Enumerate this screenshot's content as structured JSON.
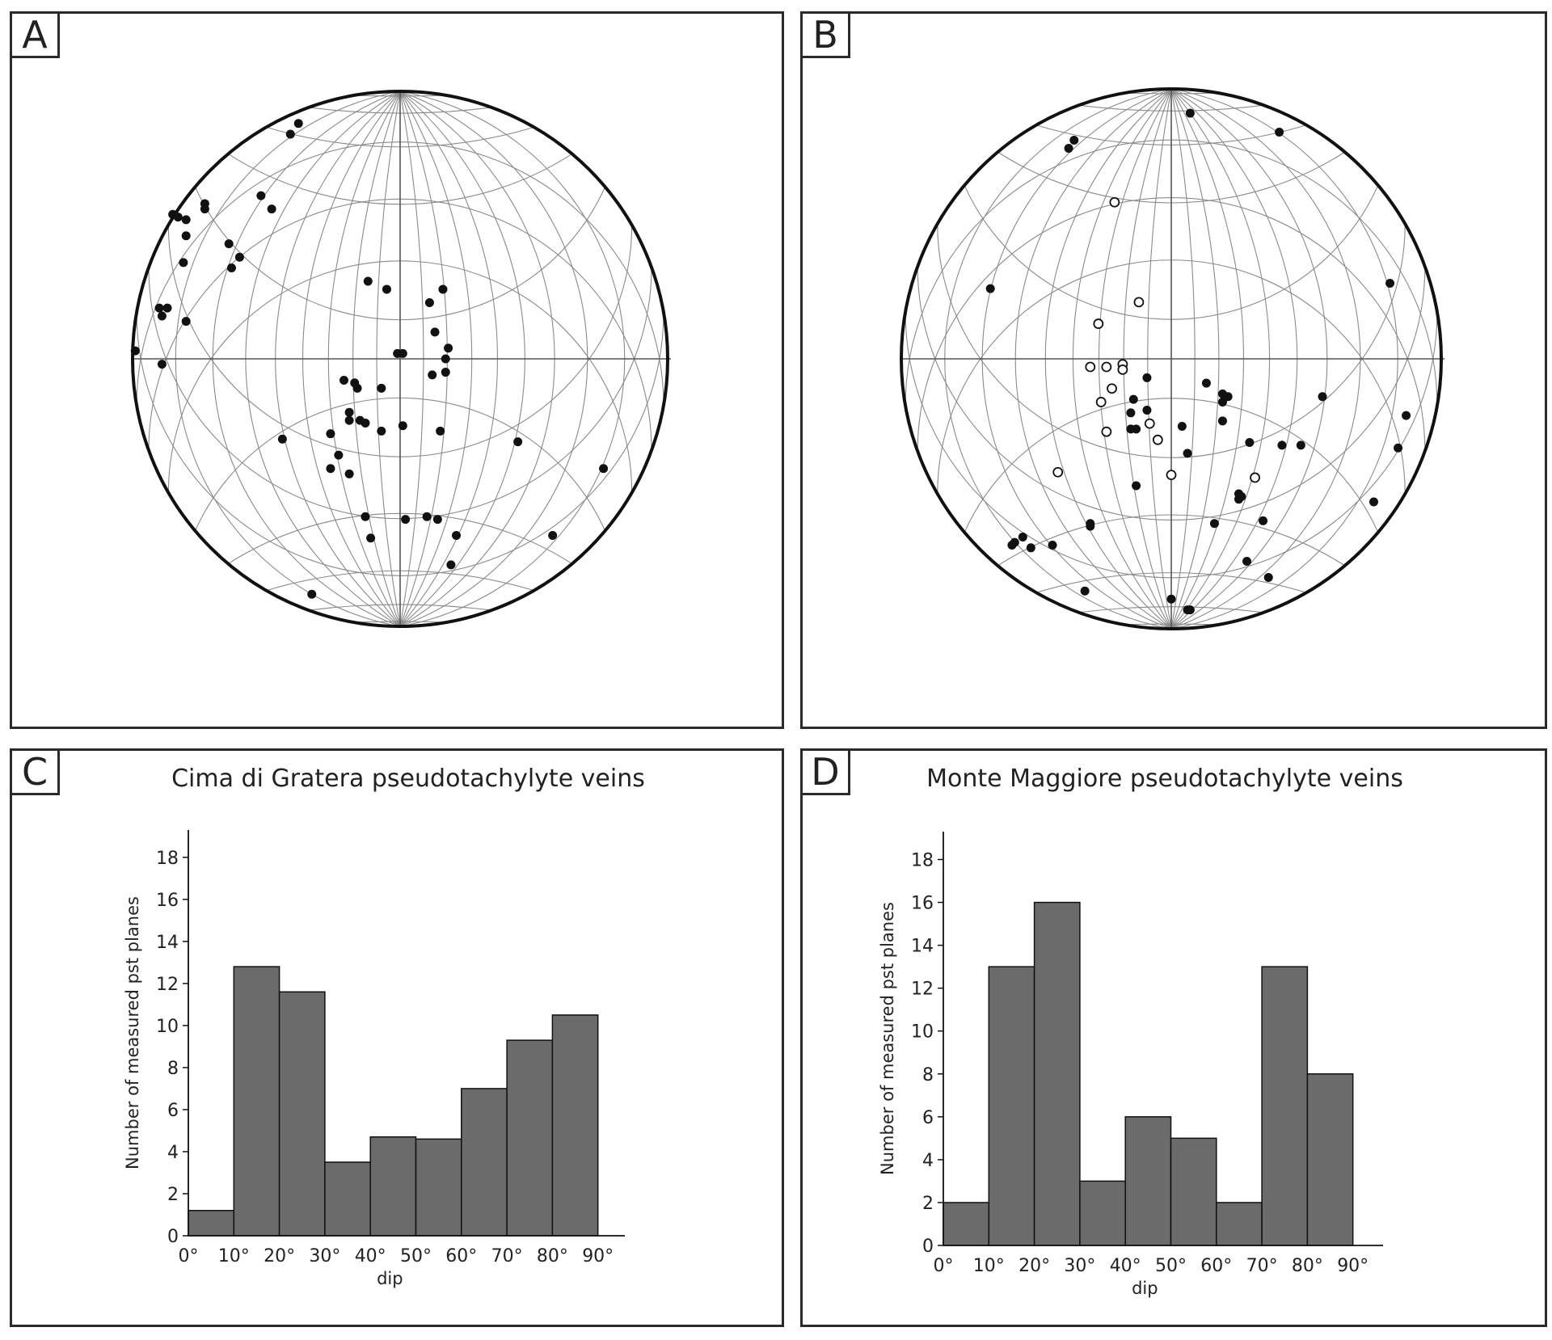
{
  "panels": {
    "a": {
      "label": "A"
    },
    "b": {
      "label": "B"
    },
    "c": {
      "label": "C"
    },
    "d": {
      "label": "D"
    }
  },
  "chart_data": [
    {
      "type": "scatter",
      "id": "stereonet-a",
      "projection": "equal-area lower hemisphere stereonet (poles to pseudotachylyte planes)",
      "grid": true,
      "series": [
        {
          "name": "poles",
          "marker": "filled",
          "points": [
            [
              -0.38,
              0.88
            ],
            [
              -0.41,
              0.84
            ],
            [
              -0.85,
              0.54
            ],
            [
              -0.83,
              0.53
            ],
            [
              -0.8,
              0.52
            ],
            [
              -0.73,
              0.58
            ],
            [
              -0.73,
              0.56
            ],
            [
              -0.52,
              0.61
            ],
            [
              -0.48,
              0.56
            ],
            [
              -0.8,
              0.46
            ],
            [
              -0.64,
              0.43
            ],
            [
              -0.6,
              0.38
            ],
            [
              -0.63,
              0.34
            ],
            [
              -0.81,
              0.36
            ],
            [
              -0.9,
              0.19
            ],
            [
              -0.87,
              0.19
            ],
            [
              -0.89,
              0.16
            ],
            [
              -0.8,
              0.14
            ],
            [
              -0.99,
              0.03
            ],
            [
              -0.89,
              -0.02
            ],
            [
              -0.12,
              0.29
            ],
            [
              -0.05,
              0.26
            ],
            [
              0.16,
              0.26
            ],
            [
              0.11,
              0.21
            ],
            [
              0.13,
              0.1
            ],
            [
              -0.01,
              0.02
            ],
            [
              0.01,
              0.02
            ],
            [
              0.18,
              0.04
            ],
            [
              0.17,
              0.0
            ],
            [
              0.12,
              -0.06
            ],
            [
              0.17,
              -0.05
            ],
            [
              -0.21,
              -0.08
            ],
            [
              -0.17,
              -0.09
            ],
            [
              -0.16,
              -0.11
            ],
            [
              -0.07,
              -0.11
            ],
            [
              -0.19,
              -0.2
            ],
            [
              -0.15,
              -0.23
            ],
            [
              -0.19,
              -0.23
            ],
            [
              -0.13,
              -0.24
            ],
            [
              -0.07,
              -0.27
            ],
            [
              0.01,
              -0.25
            ],
            [
              0.15,
              -0.27
            ],
            [
              -0.26,
              -0.28
            ],
            [
              -0.44,
              -0.3
            ],
            [
              -0.23,
              -0.36
            ],
            [
              -0.26,
              -0.41
            ],
            [
              -0.19,
              -0.43
            ],
            [
              0.44,
              -0.31
            ],
            [
              0.76,
              -0.41
            ],
            [
              -0.13,
              -0.59
            ],
            [
              -0.11,
              -0.67
            ],
            [
              0.02,
              -0.6
            ],
            [
              0.1,
              -0.59
            ],
            [
              0.14,
              -0.6
            ],
            [
              0.21,
              -0.66
            ],
            [
              0.19,
              -0.77
            ],
            [
              0.57,
              -0.66
            ],
            [
              -0.33,
              -0.88
            ]
          ]
        }
      ]
    },
    {
      "type": "scatter",
      "id": "stereonet-b",
      "projection": "equal-area lower hemisphere stereonet (poles to pseudotachylyte planes)",
      "grid": true,
      "series": [
        {
          "name": "poles",
          "marker": "filled",
          "points": [
            [
              0.07,
              0.91
            ],
            [
              -0.36,
              0.81
            ],
            [
              -0.38,
              0.78
            ],
            [
              0.4,
              0.84
            ],
            [
              -0.67,
              0.26
            ],
            [
              0.81,
              0.28
            ],
            [
              -0.09,
              -0.07
            ],
            [
              0.13,
              -0.09
            ],
            [
              0.19,
              -0.13
            ],
            [
              0.21,
              -0.14
            ],
            [
              0.19,
              -0.16
            ],
            [
              0.56,
              -0.14
            ],
            [
              -0.14,
              -0.15
            ],
            [
              -0.15,
              -0.2
            ],
            [
              -0.09,
              -0.19
            ],
            [
              -0.15,
              -0.26
            ],
            [
              -0.13,
              -0.26
            ],
            [
              0.19,
              -0.23
            ],
            [
              0.04,
              -0.25
            ],
            [
              0.06,
              -0.35
            ],
            [
              0.29,
              -0.31
            ],
            [
              0.41,
              -0.32
            ],
            [
              0.48,
              -0.32
            ],
            [
              0.87,
              -0.21
            ],
            [
              0.84,
              -0.33
            ],
            [
              -0.13,
              -0.47
            ],
            [
              0.25,
              -0.5
            ],
            [
              0.25,
              -0.52
            ],
            [
              0.26,
              -0.51
            ],
            [
              0.75,
              -0.53
            ],
            [
              -0.3,
              -0.61
            ],
            [
              -0.3,
              -0.62
            ],
            [
              0.16,
              -0.61
            ],
            [
              0.34,
              -0.6
            ],
            [
              -0.58,
              -0.68
            ],
            [
              -0.55,
              -0.66
            ],
            [
              -0.59,
              -0.69
            ],
            [
              -0.52,
              -0.7
            ],
            [
              -0.44,
              -0.69
            ],
            [
              0.28,
              -0.75
            ],
            [
              0.36,
              -0.81
            ],
            [
              -0.32,
              -0.86
            ],
            [
              0.0,
              -0.89
            ],
            [
              0.06,
              -0.93
            ],
            [
              0.07,
              -0.93
            ]
          ]
        },
        {
          "name": "poles (open)",
          "marker": "open",
          "points": [
            [
              -0.21,
              0.58
            ],
            [
              -0.12,
              0.21
            ],
            [
              -0.27,
              0.13
            ],
            [
              -0.3,
              -0.03
            ],
            [
              -0.24,
              -0.03
            ],
            [
              -0.18,
              -0.02
            ],
            [
              -0.18,
              -0.04
            ],
            [
              -0.22,
              -0.11
            ],
            [
              -0.26,
              -0.16
            ],
            [
              -0.24,
              -0.27
            ],
            [
              -0.08,
              -0.24
            ],
            [
              -0.05,
              -0.3
            ],
            [
              0.0,
              -0.43
            ],
            [
              -0.42,
              -0.42
            ],
            [
              0.31,
              -0.44
            ]
          ]
        }
      ]
    },
    {
      "type": "bar",
      "id": "histogram-c",
      "title": "Cima di Gratera pseudotachylyte veins",
      "xlabel": "dip",
      "ylabel": "Number of measured pst planes",
      "categories": [
        "0°-10°",
        "10°-20°",
        "20°-30°",
        "30°-40°",
        "40°-50°",
        "50°-60°",
        "60°-70°",
        "70°-80°",
        "80°-90°"
      ],
      "values": [
        1.2,
        12.8,
        11.6,
        3.5,
        4.7,
        4.6,
        7.0,
        9.3,
        10.5
      ],
      "xticks": [
        "0°",
        "10°",
        "20°",
        "30°",
        "40°",
        "50°",
        "60°",
        "70°",
        "80°",
        "90°"
      ],
      "yticks": [
        "0",
        "2",
        "4",
        "6",
        "8",
        "10",
        "12",
        "14",
        "16",
        "18"
      ],
      "ylim": [
        0,
        19.3
      ],
      "bar_color": "#6b6b6b"
    },
    {
      "type": "bar",
      "id": "histogram-d",
      "title": "Monte Maggiore pseudotachylyte veins",
      "xlabel": "dip",
      "ylabel": "Number of measured pst planes",
      "categories": [
        "0°-10°",
        "10°-20°",
        "20°-30°",
        "30°-40°",
        "40°-50°",
        "50°-60°",
        "60°-70°",
        "70°-80°",
        "80°-90°"
      ],
      "values": [
        2,
        13,
        16,
        3,
        6,
        5,
        2,
        13,
        8
      ],
      "xticks": [
        "0°",
        "10°",
        "20°",
        "30°",
        "40°",
        "50°",
        "60°",
        "70°",
        "80°",
        "90°"
      ],
      "yticks": [
        "0",
        "2",
        "4",
        "6",
        "8",
        "10",
        "12",
        "14",
        "16",
        "18"
      ],
      "ylim": [
        0,
        19.3
      ],
      "bar_color": "#6b6b6b"
    }
  ]
}
